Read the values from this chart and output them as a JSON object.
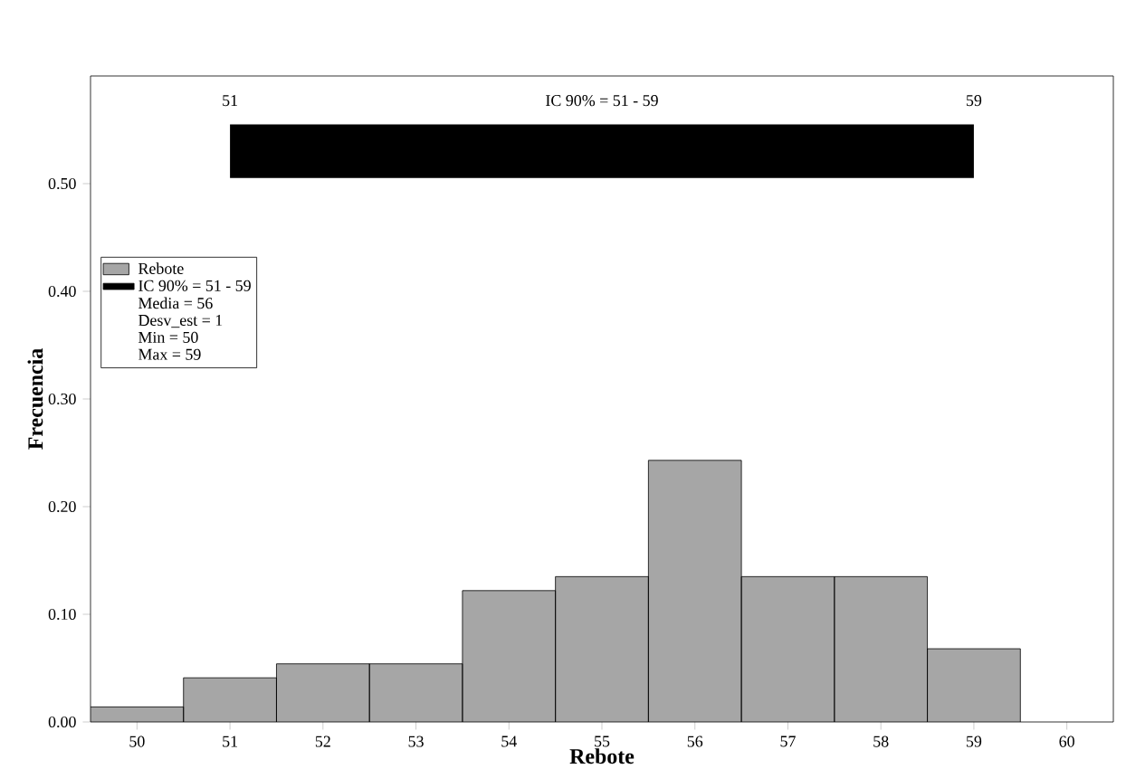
{
  "chart_data": {
    "type": "bar",
    "xlabel": "Rebote",
    "ylabel": "Frecuencia",
    "categories": [
      "50",
      "51",
      "52",
      "53",
      "54",
      "55",
      "56",
      "57",
      "58",
      "59",
      "60"
    ],
    "series": [
      {
        "name": "Rebote",
        "color": "#a6a6a6",
        "values": [
          0.014,
          0.041,
          0.054,
          0.054,
          0.122,
          0.135,
          0.243,
          0.135,
          0.135,
          0.068,
          null
        ]
      }
    ],
    "ylim": [
      0,
      0.6
    ],
    "yticks": [
      {
        "value": 0,
        "label": "0.00"
      },
      {
        "value": 0.1,
        "label": "0.10"
      },
      {
        "value": 0.2,
        "label": "0.20"
      },
      {
        "value": 0.3,
        "label": "0.30"
      },
      {
        "value": 0.4,
        "label": "0.40"
      },
      {
        "value": 0.5,
        "label": "0.50"
      }
    ],
    "bands": [
      {
        "axis": "x",
        "from": "51",
        "to": "59",
        "label": "IC 90% = 51 - 59",
        "color": "#000000"
      }
    ],
    "annotations": [
      "51",
      "59",
      "Media = 56",
      "Desv_est = 1",
      "Min = 50",
      "Max = 59"
    ],
    "legend": "left"
  }
}
